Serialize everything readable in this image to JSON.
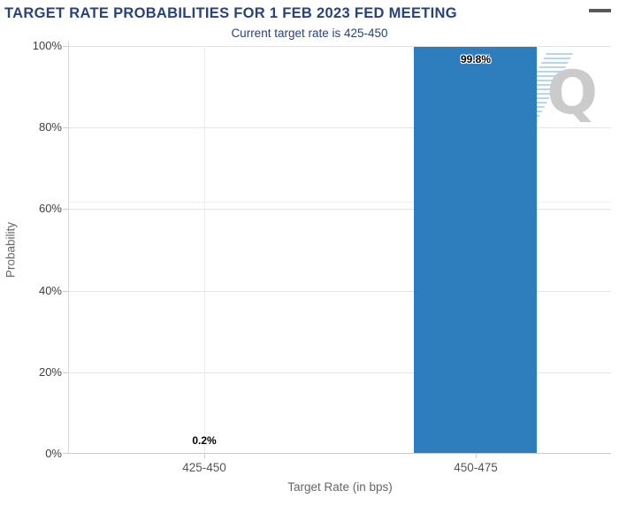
{
  "header": {
    "menu_icon": "hamburger-icon"
  },
  "watermark_letter": "Q",
  "chart_data": {
    "type": "bar",
    "title": "TARGET RATE PROBABILITIES FOR 1 FEB 2023 FED MEETING",
    "subtitle": "Current target rate is 425-450",
    "categories": [
      "425-450",
      "450-475"
    ],
    "values": [
      0.2,
      99.8
    ],
    "value_labels": [
      "0.2%",
      "99.8%"
    ],
    "xlabel": "Target Rate (in bps)",
    "ylabel": "Probability",
    "ylim": [
      0,
      100
    ],
    "ytick_interval": 20,
    "ytick_labels": [
      "0%",
      "20%",
      "40%",
      "60%",
      "80%",
      "100%"
    ],
    "grid": true,
    "legend_position": "none",
    "bar_color": "#2e7ebe",
    "colors": {
      "title_text": "#26437e",
      "subtitle_text": "#26437e",
      "axis_tick_text": "#404040",
      "category_text": "#555555",
      "axis_title_text": "#666666",
      "gridline": "#e4e4e4",
      "baseline": "#c9c9c9",
      "menu_icon": "#58595b",
      "watermark_gray": "#c9c9c9",
      "watermark_blue": "#96c7e4"
    }
  }
}
